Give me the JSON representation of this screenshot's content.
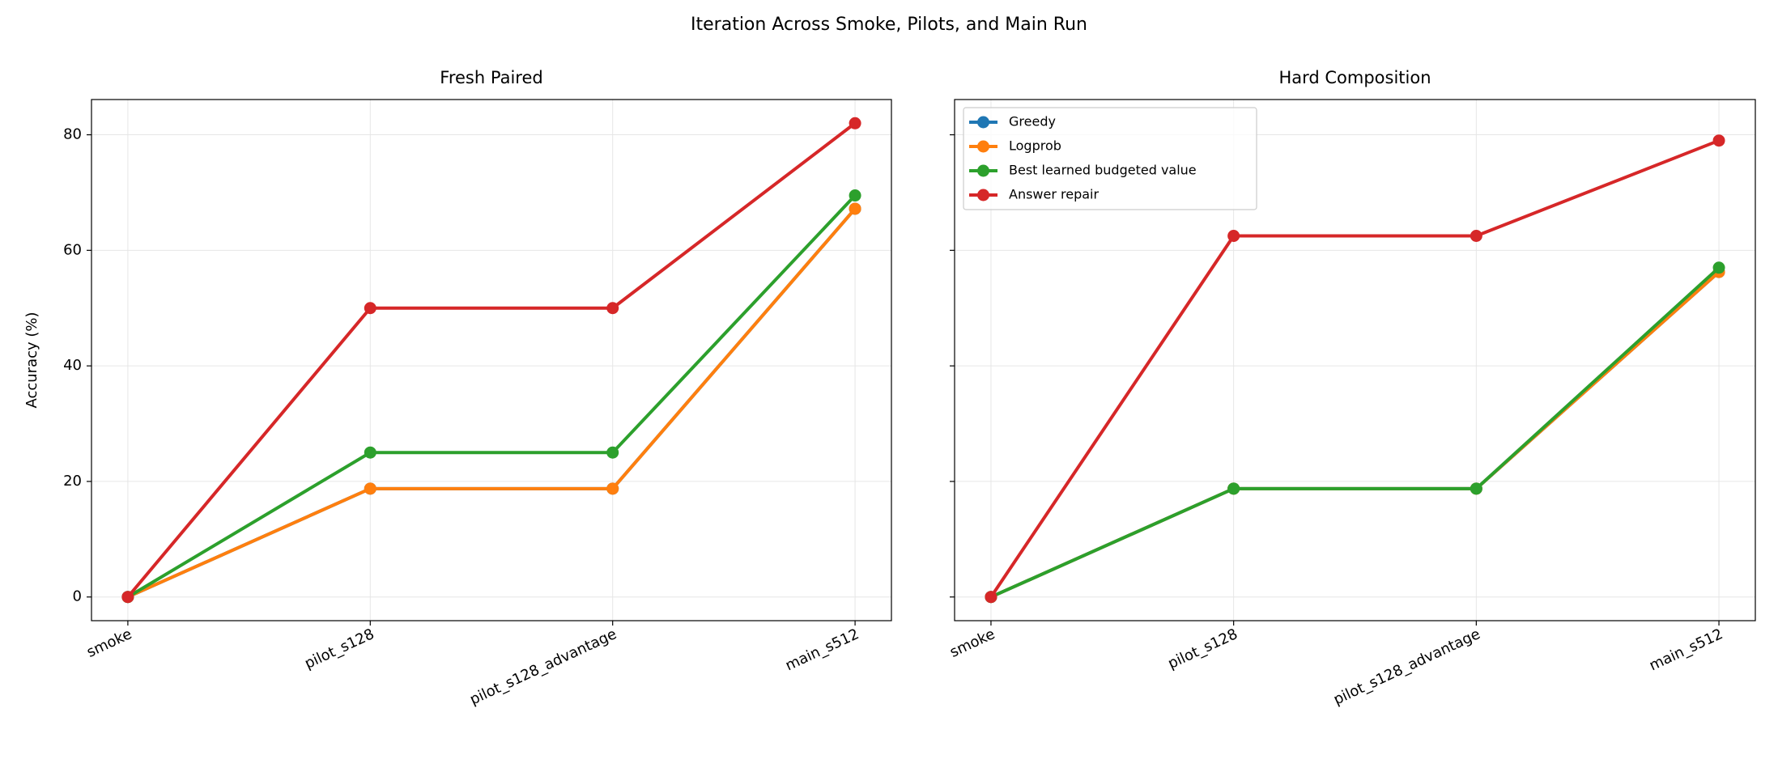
{
  "title": "Iteration Across Smoke, Pilots, and Main Run",
  "chart_data": [
    {
      "type": "line",
      "title": "Fresh Paired",
      "ylabel": "Accuracy (%)",
      "categories": [
        "smoke",
        "pilot_s128",
        "pilot_s128_advantage",
        "main_s512"
      ],
      "ylim": [
        -4.1,
        86.1
      ],
      "yticks": [
        0,
        20,
        40,
        60,
        80
      ],
      "grid": true,
      "series": [
        {
          "name": "Greedy",
          "color": "#1f77b4",
          "values": [
            0,
            18.75,
            18.75,
            67.2
          ]
        },
        {
          "name": "Logprob",
          "color": "#ff7f0e",
          "values": [
            0,
            18.75,
            18.75,
            67.2
          ]
        },
        {
          "name": "Best learned budgeted value",
          "color": "#2ca02c",
          "values": [
            0,
            25,
            25,
            69.5
          ]
        },
        {
          "name": "Answer repair",
          "color": "#d62728",
          "values": [
            0,
            50,
            50,
            82
          ]
        }
      ]
    },
    {
      "type": "line",
      "title": "Hard Composition",
      "sharey": true,
      "grid": true,
      "legend": "upper left",
      "categories": [
        "smoke",
        "pilot_s128",
        "pilot_s128_advantage",
        "main_s512"
      ],
      "series": [
        {
          "name": "Greedy",
          "color": "#1f77b4",
          "values": [
            0,
            18.75,
            18.75,
            56.25
          ]
        },
        {
          "name": "Logprob",
          "color": "#ff7f0e",
          "values": [
            0,
            18.75,
            18.75,
            56.25
          ]
        },
        {
          "name": "Best learned budgeted value",
          "color": "#2ca02c",
          "values": [
            0,
            18.75,
            18.75,
            57
          ]
        },
        {
          "name": "Answer repair",
          "color": "#d62728",
          "values": [
            0,
            62.5,
            62.5,
            79
          ]
        }
      ]
    }
  ]
}
